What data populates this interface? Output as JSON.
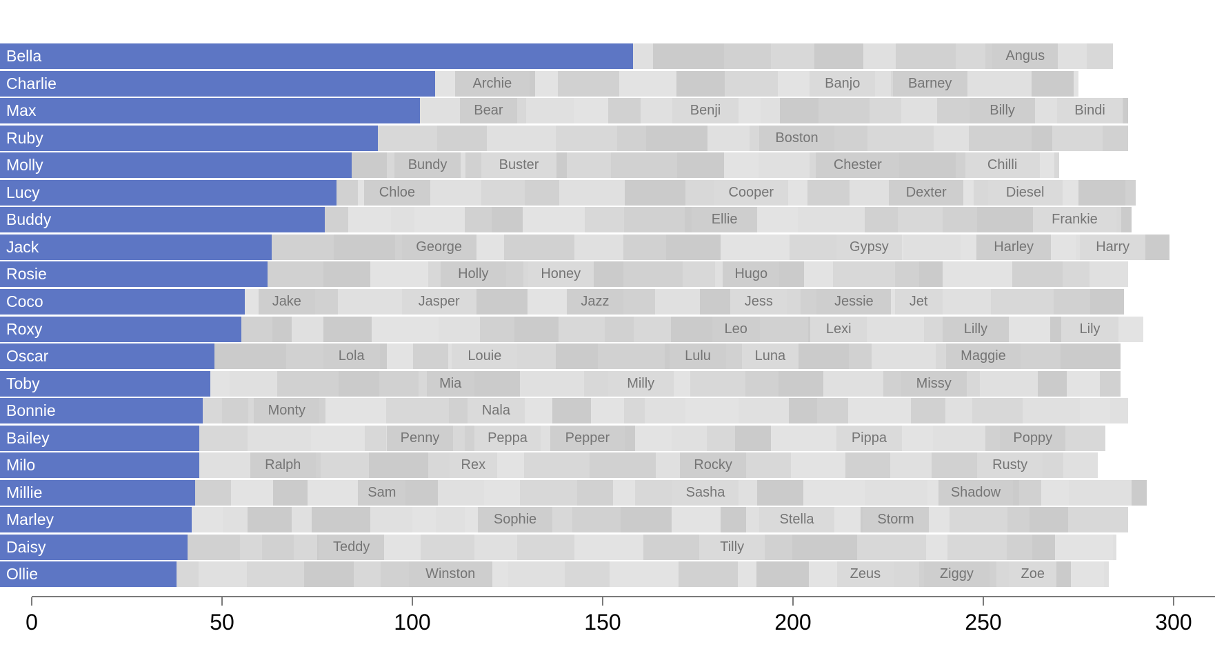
{
  "colors": {
    "bar_blue": "#5d76c4",
    "bar_label": "#ffffff",
    "segment_grays": [
      "#e0e0e0",
      "#d8d8d8",
      "#d1d1d1",
      "#cbcbcb",
      "#e3e3e3"
    ],
    "labeled_segment_grays": [
      "#cecece",
      "#dadada"
    ],
    "segment_label": "#757575",
    "axis_line": "#7a7a7a",
    "tick_label": "#000000",
    "background": "#ffffff"
  },
  "chart_data": {
    "type": "bar",
    "variant": "packed-horizontal-bars",
    "title": "",
    "xlabel": "",
    "ylabel": "",
    "xlim": [
      0,
      300
    ],
    "x_ticks": [
      0,
      50,
      100,
      150,
      200,
      250,
      300
    ],
    "grid": false,
    "legend": "none",
    "rows": [
      {
        "name": "Bella",
        "value": 158,
        "total": 284,
        "others": [
          {
            "label": "Angus",
            "pos": 261
          }
        ]
      },
      {
        "name": "Charlie",
        "value": 106,
        "total": 275,
        "others": [
          {
            "label": "Archie",
            "pos": 121
          },
          {
            "label": "Banjo",
            "pos": 213
          },
          {
            "label": "Barney",
            "pos": 236
          }
        ]
      },
      {
        "name": "Max",
        "value": 102,
        "total": 288,
        "others": [
          {
            "label": "Bear",
            "pos": 120
          },
          {
            "label": "Benji",
            "pos": 177
          },
          {
            "label": "Billy",
            "pos": 255
          },
          {
            "label": "Bindi",
            "pos": 278
          }
        ]
      },
      {
        "name": "Ruby",
        "value": 91,
        "total": 288,
        "others": [
          {
            "label": "Boston",
            "pos": 201
          }
        ]
      },
      {
        "name": "Molly",
        "value": 84,
        "total": 270,
        "others": [
          {
            "label": "Bundy",
            "pos": 104
          },
          {
            "label": "Buster",
            "pos": 128
          },
          {
            "label": "Chester",
            "pos": 217
          },
          {
            "label": "Chilli",
            "pos": 255
          }
        ]
      },
      {
        "name": "Lucy",
        "value": 80,
        "total": 290,
        "others": [
          {
            "label": "Chloe",
            "pos": 96
          },
          {
            "label": "Cooper",
            "pos": 189
          },
          {
            "label": "Dexter",
            "pos": 235
          },
          {
            "label": "Diesel",
            "pos": 261
          }
        ]
      },
      {
        "name": "Buddy",
        "value": 77,
        "total": 289,
        "others": [
          {
            "label": "Ellie",
            "pos": 182
          },
          {
            "label": "Frankie",
            "pos": 274
          }
        ]
      },
      {
        "name": "Jack",
        "value": 63,
        "total": 299,
        "others": [
          {
            "label": "George",
            "pos": 107
          },
          {
            "label": "Gypsy",
            "pos": 220
          },
          {
            "label": "Harley",
            "pos": 258
          },
          {
            "label": "Harry",
            "pos": 284
          }
        ]
      },
      {
        "name": "Rosie",
        "value": 62,
        "total": 288,
        "others": [
          {
            "label": "Holly",
            "pos": 116
          },
          {
            "label": "Honey",
            "pos": 139
          },
          {
            "label": "Hugo",
            "pos": 189
          }
        ]
      },
      {
        "name": "Coco",
        "value": 56,
        "total": 287,
        "others": [
          {
            "label": "Jake",
            "pos": 67
          },
          {
            "label": "Jasper",
            "pos": 107
          },
          {
            "label": "Jazz",
            "pos": 148
          },
          {
            "label": "Jess",
            "pos": 191
          },
          {
            "label": "Jessie",
            "pos": 216
          },
          {
            "label": "Jet",
            "pos": 233
          }
        ]
      },
      {
        "name": "Roxy",
        "value": 55,
        "total": 292,
        "others": [
          {
            "label": "Leo",
            "pos": 185
          },
          {
            "label": "Lexi",
            "pos": 212
          },
          {
            "label": "Lilly",
            "pos": 248
          },
          {
            "label": "Lily",
            "pos": 278
          }
        ]
      },
      {
        "name": "Oscar",
        "value": 48,
        "total": 286,
        "others": [
          {
            "label": "Lola",
            "pos": 84
          },
          {
            "label": "Louie",
            "pos": 119
          },
          {
            "label": "Lulu",
            "pos": 175
          },
          {
            "label": "Luna",
            "pos": 194
          },
          {
            "label": "Maggie",
            "pos": 250
          }
        ]
      },
      {
        "name": "Toby",
        "value": 47,
        "total": 286,
        "others": [
          {
            "label": "Mia",
            "pos": 110
          },
          {
            "label": "Milly",
            "pos": 160
          },
          {
            "label": "Missy",
            "pos": 237
          }
        ]
      },
      {
        "name": "Bonnie",
        "value": 45,
        "total": 288,
        "others": [
          {
            "label": "Monty",
            "pos": 67
          },
          {
            "label": "Nala",
            "pos": 122
          }
        ]
      },
      {
        "name": "Bailey",
        "value": 44,
        "total": 282,
        "others": [
          {
            "label": "Penny",
            "pos": 102
          },
          {
            "label": "Peppa",
            "pos": 125
          },
          {
            "label": "Pepper",
            "pos": 146
          },
          {
            "label": "Pippa",
            "pos": 220
          },
          {
            "label": "Poppy",
            "pos": 263
          }
        ]
      },
      {
        "name": "Milo",
        "value": 44,
        "total": 280,
        "others": [
          {
            "label": "Ralph",
            "pos": 66
          },
          {
            "label": "Rex",
            "pos": 116
          },
          {
            "label": "Rocky",
            "pos": 179
          },
          {
            "label": "Rusty",
            "pos": 257
          }
        ]
      },
      {
        "name": "Millie",
        "value": 43,
        "total": 293,
        "others": [
          {
            "label": "Sam",
            "pos": 92
          },
          {
            "label": "Sasha",
            "pos": 177
          },
          {
            "label": "Shadow",
            "pos": 248
          }
        ]
      },
      {
        "name": "Marley",
        "value": 42,
        "total": 288,
        "others": [
          {
            "label": "Sophie",
            "pos": 127
          },
          {
            "label": "Stella",
            "pos": 201
          },
          {
            "label": "Storm",
            "pos": 227
          }
        ]
      },
      {
        "name": "Daisy",
        "value": 41,
        "total": 285,
        "others": [
          {
            "label": "Teddy",
            "pos": 84
          },
          {
            "label": "Tilly",
            "pos": 184
          }
        ]
      },
      {
        "name": "Ollie",
        "value": 38,
        "total": 283,
        "others": [
          {
            "label": "Winston",
            "pos": 110
          },
          {
            "label": "Zeus",
            "pos": 219
          },
          {
            "label": "Ziggy",
            "pos": 243
          },
          {
            "label": "Zoe",
            "pos": 263
          }
        ]
      }
    ]
  }
}
